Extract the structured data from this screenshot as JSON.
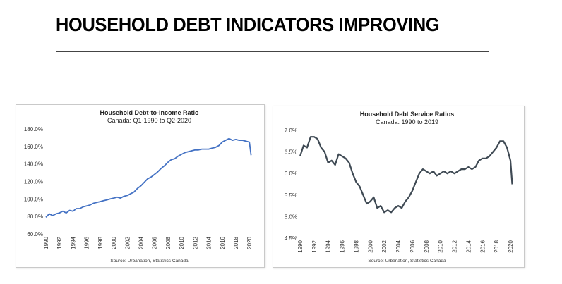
{
  "slide": {
    "title": "HOUSEHOLD DEBT INDICATORS IMPROVING"
  },
  "chart_data": [
    {
      "type": "line",
      "title": "Household Debt-to-Income Ratio",
      "subtitle": "Canada: Q1-1990 to Q2-2020",
      "source": "Source: Urbanation, Statistics Canada",
      "color": "#4472c4",
      "ylim": [
        60,
        180
      ],
      "xlim": [
        1990,
        2020.5
      ],
      "yticks": [
        "180.0%",
        "160.0%",
        "140.0%",
        "120.0%",
        "100.0%",
        "80.0%",
        "60.0%"
      ],
      "xticks": [
        "1990",
        "1992",
        "1994",
        "1996",
        "1998",
        "2000",
        "2002",
        "2004",
        "2006",
        "2008",
        "2010",
        "2012",
        "2014",
        "2016",
        "2018",
        "2020"
      ],
      "series": [
        {
          "x": [
            1990,
            1990.5,
            1991,
            1991.5,
            1992,
            1992.5,
            1993,
            1993.5,
            1994,
            1994.5,
            1995,
            1995.5,
            1996,
            1996.5,
            1997,
            1997.5,
            1998,
            1998.5,
            1999,
            1999.5,
            2000,
            2000.5,
            2001,
            2001.5,
            2002,
            2002.5,
            2003,
            2003.5,
            2004,
            2004.5,
            2005,
            2005.5,
            2006,
            2006.5,
            2007,
            2007.5,
            2008,
            2008.5,
            2009,
            2009.5,
            2010,
            2010.5,
            2011,
            2011.5,
            2012,
            2012.5,
            2013,
            2013.5,
            2014,
            2014.5,
            2015,
            2015.5,
            2016,
            2016.5,
            2017,
            2017.5,
            2018,
            2018.5,
            2019,
            2019.5,
            2020,
            2020.25
          ],
          "values": [
            79,
            83,
            81,
            83,
            84,
            86,
            84,
            87,
            86,
            89,
            89,
            91,
            92,
            93,
            95,
            96,
            97,
            98,
            99,
            100,
            101,
            102,
            101,
            103,
            104,
            106,
            108,
            112,
            115,
            119,
            123,
            125,
            128,
            131,
            135,
            138,
            142,
            145,
            146,
            149,
            151,
            153,
            154,
            155,
            156,
            156,
            157,
            157,
            157,
            158,
            159,
            161,
            165,
            167,
            169,
            167,
            168,
            167,
            167,
            166,
            165,
            150
          ]
        }
      ]
    },
    {
      "type": "line",
      "title": "Household Debt Service Ratios",
      "subtitle": "Canada: 1990 to 2019",
      "source": "Source: Urbanation, Statistics Canada",
      "color": "#3f4a54",
      "ylim": [
        4.5,
        7.0
      ],
      "xlim": [
        1990,
        2020.5
      ],
      "yticks": [
        "7.0%",
        "6.5%",
        "6.0%",
        "5.5%",
        "5.0%",
        "4.5%"
      ],
      "xticks": [
        "1990",
        "1992",
        "1994",
        "1996",
        "1998",
        "2000",
        "2002",
        "2004",
        "2006",
        "2008",
        "2010",
        "2012",
        "2014",
        "2016",
        "2018",
        "2020"
      ],
      "series": [
        {
          "x": [
            1990,
            1990.5,
            1991,
            1991.5,
            1992,
            1992.5,
            1993,
            1993.5,
            1994,
            1994.5,
            1995,
            1995.5,
            1996,
            1996.5,
            1997,
            1997.5,
            1998,
            1998.5,
            1999,
            1999.5,
            2000,
            2000.5,
            2001,
            2001.5,
            2002,
            2002.5,
            2003,
            2003.5,
            2004,
            2004.5,
            2005,
            2005.5,
            2006,
            2006.5,
            2007,
            2007.5,
            2008,
            2008.5,
            2009,
            2009.5,
            2010,
            2010.5,
            2011,
            2011.5,
            2012,
            2012.5,
            2013,
            2013.5,
            2014,
            2014.5,
            2015,
            2015.5,
            2016,
            2016.5,
            2017,
            2017.5,
            2018,
            2018.5,
            2019,
            2019.5,
            2020,
            2020.25
          ],
          "values": [
            6.4,
            6.65,
            6.6,
            6.85,
            6.85,
            6.8,
            6.6,
            6.5,
            6.25,
            6.3,
            6.2,
            6.45,
            6.4,
            6.35,
            6.25,
            6.0,
            5.8,
            5.7,
            5.5,
            5.3,
            5.35,
            5.45,
            5.2,
            5.25,
            5.1,
            5.15,
            5.1,
            5.2,
            5.25,
            5.2,
            5.35,
            5.45,
            5.6,
            5.8,
            6.0,
            6.1,
            6.05,
            6.0,
            6.05,
            5.95,
            6.0,
            6.05,
            6.0,
            6.05,
            6.0,
            6.05,
            6.1,
            6.1,
            6.15,
            6.1,
            6.15,
            6.3,
            6.35,
            6.35,
            6.4,
            6.5,
            6.6,
            6.75,
            6.75,
            6.6,
            6.3,
            5.75
          ]
        }
      ]
    }
  ]
}
